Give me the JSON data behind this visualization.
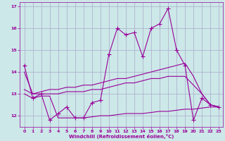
{
  "xlabel": "Windchill (Refroidissement éolien,°C)",
  "bg_color": "#cce8e8",
  "line_color": "#990099",
  "grid_color": "#aaaacc",
  "x": [
    0,
    1,
    2,
    3,
    4,
    5,
    6,
    7,
    8,
    9,
    10,
    11,
    12,
    13,
    14,
    15,
    16,
    17,
    18,
    19,
    20,
    21,
    22,
    23
  ],
  "series1": [
    14.3,
    12.8,
    13.0,
    11.8,
    12.1,
    12.4,
    11.9,
    11.9,
    12.6,
    12.7,
    14.8,
    16.0,
    15.7,
    15.8,
    14.7,
    16.0,
    16.2,
    16.9,
    15.0,
    14.3,
    11.8,
    12.8,
    12.5,
    12.4
  ],
  "series2": [
    14.0,
    13.0,
    13.1,
    13.2,
    13.2,
    13.3,
    13.3,
    13.4,
    13.4,
    13.5,
    13.6,
    13.7,
    13.7,
    13.8,
    13.9,
    14.0,
    14.1,
    14.2,
    14.3,
    14.4,
    13.8,
    13.0,
    12.5,
    12.4
  ],
  "series3": [
    13.2,
    13.0,
    13.0,
    13.0,
    13.0,
    13.1,
    13.1,
    13.1,
    13.2,
    13.2,
    13.3,
    13.4,
    13.5,
    13.5,
    13.6,
    13.7,
    13.7,
    13.8,
    13.8,
    13.8,
    13.4,
    13.0,
    12.5,
    12.4
  ],
  "series4": [
    13.0,
    12.8,
    12.9,
    12.9,
    11.9,
    11.9,
    11.9,
    11.9,
    11.95,
    12.0,
    12.0,
    12.05,
    12.1,
    12.1,
    12.1,
    12.15,
    12.2,
    12.2,
    12.25,
    12.3,
    12.3,
    12.35,
    12.4,
    12.4
  ],
  "ylim": [
    11.5,
    17.2
  ],
  "xlim": [
    -0.5,
    23.5
  ],
  "yticks": [
    12,
    13,
    14,
    15,
    16,
    17
  ],
  "xticks": [
    0,
    1,
    2,
    3,
    4,
    5,
    6,
    7,
    8,
    9,
    10,
    11,
    12,
    13,
    14,
    15,
    16,
    17,
    18,
    19,
    20,
    21,
    22,
    23
  ]
}
